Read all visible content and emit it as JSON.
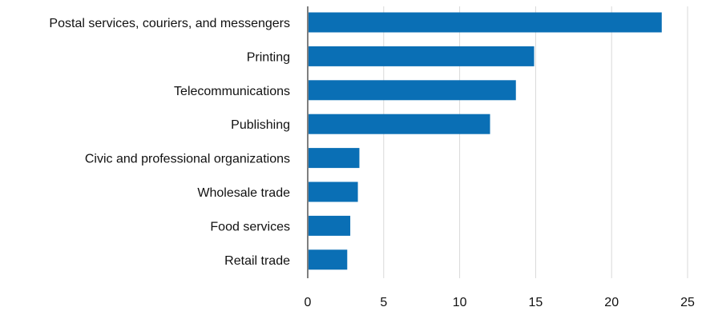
{
  "chart_data": {
    "type": "bar",
    "orientation": "horizontal",
    "categories": [
      "Postal services, couriers, and messengers",
      "Printing",
      "Telecommunications",
      "Publishing",
      "Civic and professional organizations",
      "Wholesale trade",
      "Food services",
      "Retail trade"
    ],
    "values": [
      23.3,
      14.9,
      13.7,
      12.0,
      3.4,
      3.3,
      2.8,
      2.6
    ],
    "title": "",
    "xlabel": "",
    "ylabel": "",
    "xlim": [
      0,
      25
    ],
    "xticks": [
      "0",
      "5",
      "10",
      "15",
      "20",
      "25"
    ],
    "grid": "vertical",
    "legend": "none",
    "bar_color": "#0A6FB5",
    "grid_color": "#D9D9D9",
    "axis_color": "#7F7F7F"
  }
}
